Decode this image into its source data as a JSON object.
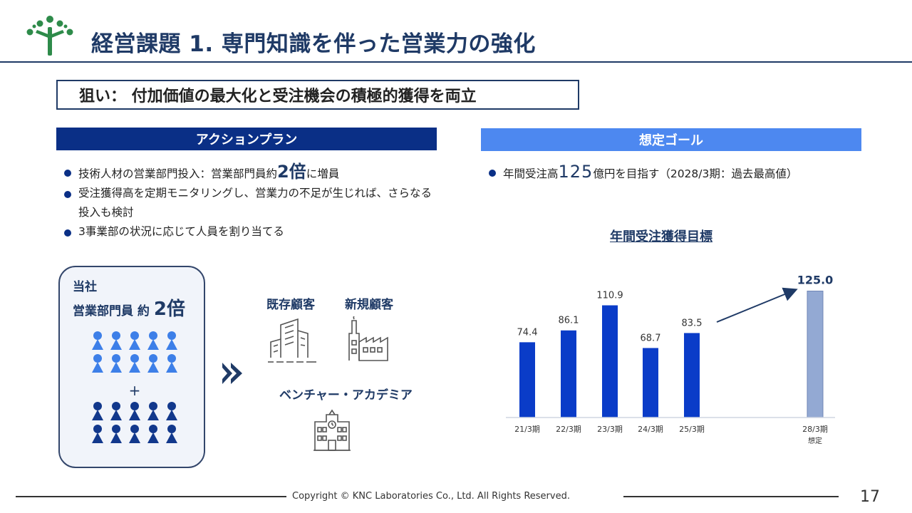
{
  "title": "経営課題 1. 専門知識を伴った営業力の強化",
  "aim": "狙い： 付加価値の最大化と受注機会の積極的獲得を両立",
  "action_plan": {
    "header": "アクションプラン",
    "bullet1_pre": "技術人材の営業部門投入：営業部門員約",
    "bullet1_num": "2倍",
    "bullet1_post": "に増員",
    "bullet2": "受注獲得高を定期モニタリングし、営業力の不足が生じれば、さらなる投入も検討",
    "bullet3": "3事業部の状況に応じて人員を割り当てる"
  },
  "goal": {
    "header": "想定ゴール",
    "bullet_pre": "年間受注高",
    "bullet_num": "125",
    "bullet_post": "億円を目指す（2028/3期：過去最高値）"
  },
  "panel": {
    "line1": "当社",
    "line2": "営業部門員 約",
    "multiplier": "2倍",
    "plus": "+"
  },
  "customers": {
    "existing": "既存顧客",
    "new": "新規顧客",
    "venture": "ベンチャー・アカデミア"
  },
  "chart_title": "年間受注獲得目標",
  "chart_data": {
    "type": "bar",
    "categories": [
      "21/3期",
      "22/3期",
      "23/3期",
      "24/3期",
      "25/3期",
      "28/3期"
    ],
    "subcategory_label": "想定",
    "values": [
      74.4,
      86.1,
      110.9,
      68.7,
      83.5,
      125.0
    ],
    "value_labels": [
      "74.4",
      "86.1",
      "110.9",
      "68.7",
      "83.5",
      "125.0"
    ],
    "colors": [
      "#0a3cc8",
      "#0a3cc8",
      "#0a3cc8",
      "#0a3cc8",
      "#0a3cc8",
      "#93a9d3"
    ],
    "title": "年間受注獲得目標",
    "ylim": [
      0,
      130
    ]
  },
  "footer": {
    "copyright": "Copyright © KNC Laboratories Co., Ltd. All Rights Reserved.",
    "page": "17"
  },
  "colors": {
    "navy": "#1f3a66",
    "blue_dark": "#0a2f86",
    "blue_light": "#4d88f0",
    "person_light": "#3d7fe8",
    "person_dark": "#12388c"
  },
  "icons": [
    "logo-tree-icon",
    "person-icon",
    "double-chevron-icon",
    "office-building-icon",
    "factory-icon",
    "university-building-icon"
  ]
}
